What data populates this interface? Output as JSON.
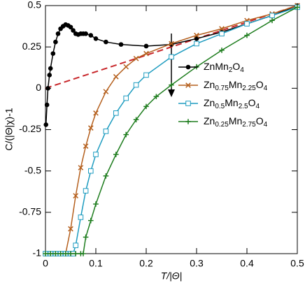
{
  "chart_data": {
    "type": "line",
    "xlabel": "T/|Θ|",
    "ylabel": "C/(|Θ|χ)-1",
    "xlim": [
      0,
      0.5
    ],
    "ylim": [
      -1,
      0.5
    ],
    "xticks": [
      0,
      0.1,
      0.2,
      0.3,
      0.4,
      0.5
    ],
    "yticks": [
      -1,
      -0.75,
      -0.5,
      -0.25,
      0,
      0.25,
      0.5
    ],
    "legend": "right",
    "reference_line": {
      "color": "#c8262a",
      "x": [
        0,
        0.5
      ],
      "values": [
        0,
        0.5
      ]
    },
    "series": [
      {
        "name": "ZnMn2O4",
        "color": "#000000",
        "marker": "circle",
        "x": [
          0.001,
          0.003,
          0.005,
          0.008,
          0.01,
          0.015,
          0.02,
          0.025,
          0.03,
          0.035,
          0.04,
          0.045,
          0.05,
          0.055,
          0.06,
          0.065,
          0.07,
          0.075,
          0.08,
          0.09,
          0.1,
          0.12,
          0.15,
          0.2,
          0.25,
          0.3,
          0.35,
          0.4,
          0.45,
          0.5
        ],
        "values": [
          -0.22,
          -0.1,
          0,
          0.08,
          0.12,
          0.21,
          0.28,
          0.33,
          0.36,
          0.375,
          0.385,
          0.38,
          0.37,
          0.35,
          0.33,
          0.325,
          0.33,
          0.33,
          0.33,
          0.32,
          0.3,
          0.28,
          0.265,
          0.255,
          0.265,
          0.3,
          0.34,
          0.39,
          0.44,
          0.5
        ]
      },
      {
        "name": "Zn0.75Mn2.25O4",
        "color": "#b5601e",
        "marker": "x",
        "x": [
          0,
          0.01,
          0.02,
          0.03,
          0.04,
          0.05,
          0.06,
          0.07,
          0.08,
          0.09,
          0.1,
          0.12,
          0.14,
          0.16,
          0.18,
          0.2,
          0.25,
          0.3,
          0.35,
          0.4,
          0.45,
          0.5
        ],
        "values": [
          -1,
          -1,
          -1,
          -1,
          -1,
          -0.85,
          -0.65,
          -0.48,
          -0.35,
          -0.24,
          -0.15,
          -0.02,
          0.07,
          0.13,
          0.18,
          0.21,
          0.27,
          0.32,
          0.36,
          0.41,
          0.45,
          0.5
        ]
      },
      {
        "name": "Zn0.5Mn2.5O4",
        "color": "#1e9cc0",
        "marker": "square",
        "x": [
          0,
          0.01,
          0.02,
          0.03,
          0.04,
          0.05,
          0.055,
          0.06,
          0.07,
          0.08,
          0.09,
          0.1,
          0.12,
          0.14,
          0.16,
          0.18,
          0.2,
          0.25,
          0.3,
          0.35,
          0.4,
          0.45,
          0.5
        ],
        "values": [
          -1,
          -1,
          -1,
          -1,
          -1,
          -1,
          -1,
          -0.95,
          -0.78,
          -0.62,
          -0.5,
          -0.4,
          -0.26,
          -0.15,
          -0.06,
          0.02,
          0.08,
          0.19,
          0.27,
          0.33,
          0.39,
          0.44,
          0.49
        ]
      },
      {
        "name": "Zn0.25Mn2.75O4",
        "color": "#1e7d1e",
        "marker": "plus",
        "x": [
          0,
          0.01,
          0.02,
          0.03,
          0.04,
          0.05,
          0.06,
          0.07,
          0.075,
          0.08,
          0.09,
          0.1,
          0.12,
          0.14,
          0.16,
          0.18,
          0.2,
          0.22,
          0.25,
          0.3,
          0.35,
          0.4,
          0.45,
          0.5
        ],
        "values": [
          -1,
          -1,
          -1,
          -1,
          -1,
          -1,
          -1,
          -1,
          -1,
          -0.9,
          -0.8,
          -0.7,
          -0.53,
          -0.4,
          -0.28,
          -0.19,
          -0.11,
          -0.05,
          0.02,
          0.13,
          0.23,
          0.32,
          0.41,
          0.49
        ]
      }
    ]
  }
}
